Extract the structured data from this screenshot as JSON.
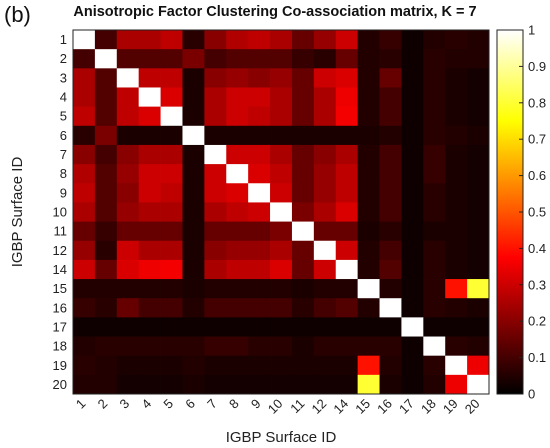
{
  "panel_label": "(b)",
  "chart_data": {
    "type": "heatmap",
    "title": "Anisotropic Factor Clustering Co-association matrix, K = 7",
    "xlabel": "IGBP Surface ID",
    "ylabel": "IGBP Surface ID",
    "row_labels": [
      "1",
      "2",
      "3",
      "4",
      "5",
      "6",
      "7",
      "8",
      "9",
      "10",
      "11",
      "12",
      "14",
      "15",
      "16",
      "17",
      "18",
      "19",
      "20"
    ],
    "col_labels": [
      "1",
      "2",
      "3",
      "4",
      "5",
      "6",
      "7",
      "8",
      "9",
      "10",
      "11",
      "12",
      "14",
      "15",
      "16",
      "17",
      "18",
      "19",
      "20"
    ],
    "colormap": "hot",
    "clim": [
      0,
      1
    ],
    "colorbar_ticks": [
      "0",
      "0.1",
      "0.2",
      "0.3",
      "0.4",
      "0.5",
      "0.6",
      "0.7",
      "0.8",
      "0.9",
      "1"
    ],
    "colorbar_values": [
      0,
      0.1,
      0.2,
      0.3,
      0.4,
      0.5,
      0.6,
      0.7,
      0.8,
      0.9,
      1
    ],
    "values": [
      [
        1.0,
        0.1,
        0.25,
        0.25,
        0.28,
        0.06,
        0.2,
        0.26,
        0.28,
        0.25,
        0.15,
        0.22,
        0.3,
        0.05,
        0.08,
        0.02,
        0.05,
        0.06,
        0.05
      ],
      [
        0.1,
        1.0,
        0.12,
        0.12,
        0.12,
        0.18,
        0.1,
        0.12,
        0.12,
        0.12,
        0.08,
        0.06,
        0.15,
        0.05,
        0.06,
        0.02,
        0.06,
        0.05,
        0.05
      ],
      [
        0.25,
        0.12,
        1.0,
        0.28,
        0.28,
        0.04,
        0.2,
        0.22,
        0.2,
        0.22,
        0.15,
        0.3,
        0.32,
        0.05,
        0.15,
        0.02,
        0.06,
        0.04,
        0.03
      ],
      [
        0.25,
        0.12,
        0.28,
        1.0,
        0.32,
        0.04,
        0.25,
        0.3,
        0.3,
        0.25,
        0.15,
        0.25,
        0.35,
        0.05,
        0.1,
        0.02,
        0.06,
        0.04,
        0.03
      ],
      [
        0.28,
        0.12,
        0.28,
        0.32,
        1.0,
        0.04,
        0.25,
        0.3,
        0.28,
        0.25,
        0.15,
        0.25,
        0.36,
        0.05,
        0.1,
        0.02,
        0.06,
        0.04,
        0.03
      ],
      [
        0.06,
        0.18,
        0.04,
        0.04,
        0.04,
        1.0,
        0.04,
        0.04,
        0.04,
        0.04,
        0.04,
        0.04,
        0.04,
        0.04,
        0.05,
        0.02,
        0.06,
        0.05,
        0.04
      ],
      [
        0.2,
        0.1,
        0.2,
        0.25,
        0.25,
        0.04,
        1.0,
        0.3,
        0.3,
        0.25,
        0.15,
        0.2,
        0.25,
        0.05,
        0.1,
        0.02,
        0.08,
        0.04,
        0.03
      ],
      [
        0.26,
        0.12,
        0.22,
        0.3,
        0.3,
        0.04,
        0.3,
        1.0,
        0.32,
        0.28,
        0.15,
        0.22,
        0.28,
        0.05,
        0.1,
        0.02,
        0.08,
        0.04,
        0.03
      ],
      [
        0.28,
        0.12,
        0.2,
        0.3,
        0.28,
        0.04,
        0.3,
        0.32,
        1.0,
        0.3,
        0.15,
        0.22,
        0.28,
        0.05,
        0.1,
        0.02,
        0.06,
        0.04,
        0.03
      ],
      [
        0.25,
        0.12,
        0.22,
        0.25,
        0.25,
        0.04,
        0.25,
        0.28,
        0.3,
        1.0,
        0.18,
        0.25,
        0.32,
        0.05,
        0.1,
        0.02,
        0.06,
        0.04,
        0.03
      ],
      [
        0.15,
        0.08,
        0.15,
        0.15,
        0.15,
        0.04,
        0.15,
        0.15,
        0.15,
        0.18,
        1.0,
        0.15,
        0.15,
        0.04,
        0.06,
        0.02,
        0.04,
        0.04,
        0.03
      ],
      [
        0.22,
        0.06,
        0.3,
        0.25,
        0.25,
        0.04,
        0.2,
        0.22,
        0.22,
        0.25,
        0.15,
        1.0,
        0.3,
        0.05,
        0.1,
        0.02,
        0.06,
        0.04,
        0.03
      ],
      [
        0.3,
        0.15,
        0.32,
        0.35,
        0.36,
        0.04,
        0.25,
        0.28,
        0.28,
        0.32,
        0.15,
        0.3,
        1.0,
        0.05,
        0.12,
        0.02,
        0.06,
        0.04,
        0.03
      ],
      [
        0.05,
        0.05,
        0.05,
        0.05,
        0.05,
        0.04,
        0.05,
        0.05,
        0.05,
        0.05,
        0.04,
        0.05,
        0.05,
        1.0,
        0.05,
        0.02,
        0.06,
        0.4,
        0.8
      ],
      [
        0.08,
        0.06,
        0.15,
        0.1,
        0.1,
        0.05,
        0.1,
        0.1,
        0.1,
        0.1,
        0.06,
        0.1,
        0.12,
        0.05,
        1.0,
        0.02,
        0.06,
        0.05,
        0.04
      ],
      [
        0.02,
        0.02,
        0.02,
        0.02,
        0.02,
        0.02,
        0.02,
        0.02,
        0.02,
        0.02,
        0.02,
        0.02,
        0.02,
        0.02,
        0.02,
        1.0,
        0.02,
        0.02,
        0.02
      ],
      [
        0.05,
        0.06,
        0.06,
        0.06,
        0.06,
        0.06,
        0.08,
        0.08,
        0.06,
        0.06,
        0.04,
        0.06,
        0.06,
        0.06,
        0.06,
        0.02,
        1.0,
        0.06,
        0.05
      ],
      [
        0.06,
        0.05,
        0.04,
        0.04,
        0.04,
        0.05,
        0.04,
        0.04,
        0.04,
        0.04,
        0.04,
        0.04,
        0.04,
        0.4,
        0.05,
        0.02,
        0.06,
        1.0,
        0.35
      ],
      [
        0.05,
        0.05,
        0.03,
        0.03,
        0.03,
        0.04,
        0.03,
        0.03,
        0.03,
        0.03,
        0.03,
        0.03,
        0.03,
        0.8,
        0.04,
        0.02,
        0.05,
        0.35,
        1.0
      ]
    ]
  }
}
